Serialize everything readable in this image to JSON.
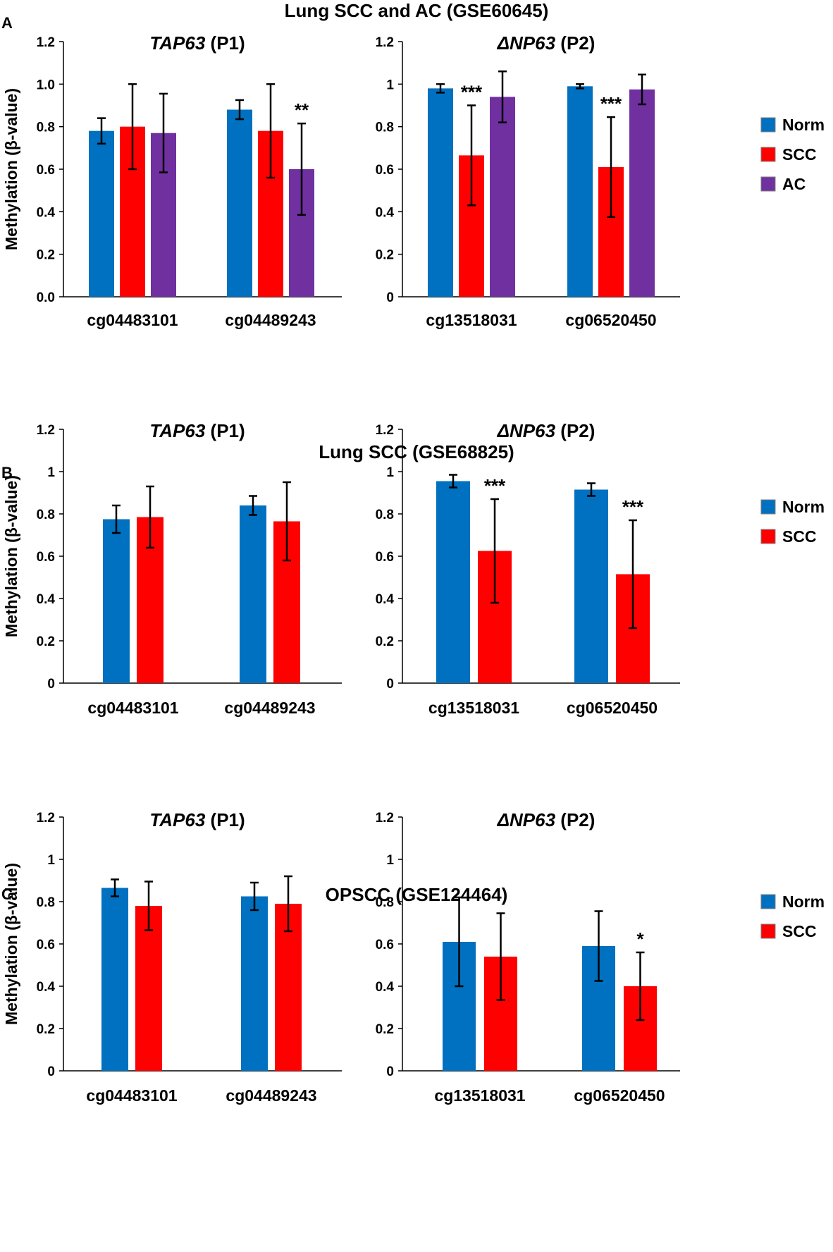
{
  "colors": {
    "Norm": "#0070C0",
    "SCC": "#FF0000",
    "AC": "#7030A0",
    "axis": "#000000"
  },
  "chart_data": [
    {
      "type": "bar",
      "panel": "A",
      "panel_title": "Lung SCC and AC (GSE60645)",
      "title": "TAP63 (P1)",
      "title_gene": "TAP63",
      "title_suffix": " (P1)",
      "ylabel": "Methylation (β-value)",
      "ylim": [
        0,
        1.2
      ],
      "yticks": [
        "0.0",
        "0.2",
        "0.4",
        "0.6",
        "0.8",
        "1.0",
        "1.2"
      ],
      "categories": [
        "cg04483101",
        "cg04489243"
      ],
      "series": [
        {
          "name": "Norm",
          "values": [
            0.78,
            0.88
          ],
          "errors": [
            0.06,
            0.045
          ]
        },
        {
          "name": "SCC",
          "values": [
            0.8,
            0.78
          ],
          "errors": [
            0.2,
            0.22
          ]
        },
        {
          "name": "AC",
          "values": [
            0.77,
            0.6
          ],
          "errors": [
            0.185,
            0.215
          ]
        }
      ],
      "annotations": [
        {
          "category": 1,
          "series": 2,
          "text": "**"
        }
      ],
      "legend": []
    },
    {
      "type": "bar",
      "panel": "A",
      "title": "ΔNP63 (P2)",
      "title_gene": "ΔNP63",
      "title_suffix": " (P2)",
      "ylabel": "",
      "ylim": [
        0,
        1.2
      ],
      "yticks": [
        "0",
        "0.2",
        "0.4",
        "0.6",
        "0.8",
        "1",
        "1.2"
      ],
      "categories": [
        "cg13518031",
        "cg06520450"
      ],
      "series": [
        {
          "name": "Norm",
          "values": [
            0.98,
            0.99
          ],
          "errors": [
            0.02,
            0.01
          ]
        },
        {
          "name": "SCC",
          "values": [
            0.665,
            0.61
          ],
          "errors": [
            0.235,
            0.235
          ]
        },
        {
          "name": "AC",
          "values": [
            0.94,
            0.975
          ],
          "errors": [
            0.12,
            0.07
          ]
        }
      ],
      "annotations": [
        {
          "category": 0,
          "series": 1,
          "text": "***"
        },
        {
          "category": 1,
          "series": 1,
          "text": "***"
        }
      ],
      "legend": [
        "Norm",
        "SCC",
        "AC"
      ]
    },
    {
      "type": "bar",
      "panel": "B",
      "panel_title": "Lung SCC (GSE68825)",
      "title": "TAP63 (P1)",
      "title_gene": "TAP63",
      "title_suffix": " (P1)",
      "ylabel": "Methylation (β-value)",
      "ylim": [
        0,
        1.2
      ],
      "yticks": [
        "0",
        "0.2",
        "0.4",
        "0.6",
        "0.8",
        "1",
        "1.2"
      ],
      "categories": [
        "cg04483101",
        "cg04489243"
      ],
      "series": [
        {
          "name": "Norm",
          "values": [
            0.775,
            0.84
          ],
          "errors": [
            0.065,
            0.045
          ]
        },
        {
          "name": "SCC",
          "values": [
            0.785,
            0.765
          ],
          "errors": [
            0.145,
            0.185
          ]
        }
      ],
      "annotations": [],
      "legend": []
    },
    {
      "type": "bar",
      "panel": "B",
      "title": "ΔNP63 (P2)",
      "title_gene": "ΔNP63",
      "title_suffix": " (P2)",
      "ylabel": "",
      "ylim": [
        0,
        1.2
      ],
      "yticks": [
        "0",
        "0.2",
        "0.4",
        "0.6",
        "0.8",
        "1",
        "1.2"
      ],
      "categories": [
        "cg13518031",
        "cg06520450"
      ],
      "series": [
        {
          "name": "Norm",
          "values": [
            0.955,
            0.915
          ],
          "errors": [
            0.03,
            0.03
          ]
        },
        {
          "name": "SCC",
          "values": [
            0.625,
            0.515
          ],
          "errors": [
            0.245,
            0.255
          ]
        }
      ],
      "annotations": [
        {
          "category": 0,
          "series": 1,
          "text": "***"
        },
        {
          "category": 1,
          "series": 1,
          "text": "***"
        }
      ],
      "legend": [
        "Norm",
        "SCC"
      ]
    },
    {
      "type": "bar",
      "panel": "C",
      "panel_title": "OPSCC (GSE124464)",
      "title": "TAP63 (P1)",
      "title_gene": "TAP63",
      "title_suffix": " (P1)",
      "ylabel": "Methylation (β-value)",
      "ylim": [
        0,
        1.2
      ],
      "yticks": [
        "0",
        "0.2",
        "0.4",
        "0.6",
        "0.8",
        "1",
        "1.2"
      ],
      "categories": [
        "cg04483101",
        "cg04489243"
      ],
      "series": [
        {
          "name": "Norm",
          "values": [
            0.865,
            0.825
          ],
          "errors": [
            0.04,
            0.065
          ]
        },
        {
          "name": "SCC",
          "values": [
            0.78,
            0.79
          ],
          "errors": [
            0.115,
            0.13
          ]
        }
      ],
      "annotations": [],
      "legend": []
    },
    {
      "type": "bar",
      "panel": "C",
      "title": "ΔNP63 (P2)",
      "title_gene": "ΔNP63",
      "title_suffix": " (P2)",
      "ylabel": "",
      "ylim": [
        0,
        1.2
      ],
      "yticks": [
        "0",
        "0.2",
        "0.4",
        "0.6",
        "0.8",
        "1",
        "1.2"
      ],
      "categories": [
        "cg13518031",
        "cg06520450"
      ],
      "series": [
        {
          "name": "Norm",
          "values": [
            0.61,
            0.59
          ],
          "errors": [
            0.21,
            0.165
          ]
        },
        {
          "name": "SCC",
          "values": [
            0.54,
            0.4
          ],
          "errors": [
            0.205,
            0.16
          ]
        }
      ],
      "annotations": [
        {
          "category": 1,
          "series": 1,
          "text": "*"
        }
      ],
      "legend": [
        "Norm",
        "SCC"
      ]
    }
  ]
}
